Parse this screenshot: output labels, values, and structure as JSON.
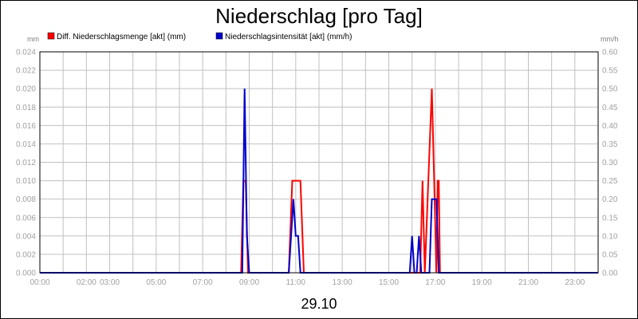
{
  "chart_data": {
    "type": "line",
    "title": "Niederschlag [pro Tag]",
    "date_label": "29.10",
    "y_left_unit": "mm",
    "y_right_unit": "mm/h",
    "ylim_left": [
      0,
      0.024
    ],
    "ylim_right": [
      0,
      0.6
    ],
    "y_left_ticks": [
      "0.000",
      "0.002",
      "0.004",
      "0.006",
      "0.008",
      "0.010",
      "0.012",
      "0.014",
      "0.016",
      "0.018",
      "0.020",
      "0.022",
      "0.024"
    ],
    "y_right_ticks": [
      "0.00",
      "0.05",
      "0.10",
      "0.15",
      "0.20",
      "0.25",
      "0.30",
      "0.35",
      "0.40",
      "0.45",
      "0.50",
      "0.55",
      "0.60"
    ],
    "x_range_hours": [
      0,
      24
    ],
    "x_ticks": [
      {
        "h": 0,
        "label": "00:00"
      },
      {
        "h": 2,
        "label": "02:00"
      },
      {
        "h": 3,
        "label": "03:00"
      },
      {
        "h": 5,
        "label": "05:00"
      },
      {
        "h": 7,
        "label": "07:00"
      },
      {
        "h": 9,
        "label": "09:00"
      },
      {
        "h": 11,
        "label": "11:00"
      },
      {
        "h": 13,
        "label": "13:00"
      },
      {
        "h": 15,
        "label": "15:00"
      },
      {
        "h": 17,
        "label": "17:00"
      },
      {
        "h": 19,
        "label": "19:00"
      },
      {
        "h": 21,
        "label": "21:00"
      },
      {
        "h": 23,
        "label": "23:00"
      }
    ],
    "grid": true,
    "legend_position": "top-left",
    "colors": {
      "series1": "#ff0000",
      "series2": "#0000cc",
      "grid": "#c0c0c0"
    },
    "series": [
      {
        "name": "Diff. Niederschlagsmenge [akt] (mm)",
        "axis": "left",
        "color": "#ff0000",
        "x": [
          0,
          8.65,
          8.75,
          8.85,
          8.95,
          10.7,
          10.85,
          10.95,
          11.1,
          11.2,
          11.35,
          16.35,
          16.45,
          16.55,
          16.7,
          16.85,
          16.95,
          17.05,
          17.1,
          17.15,
          17.2,
          17.25,
          24
        ],
        "y": [
          0,
          0,
          0.01,
          0.01,
          0,
          0,
          0.01,
          0.01,
          0.01,
          0.01,
          0,
          0,
          0.01,
          0,
          0.01,
          0.02,
          0.01,
          0,
          0.01,
          0.01,
          0,
          0,
          0
        ]
      },
      {
        "name": "Niederschlagsintensität [akt] (mm/h)",
        "axis": "right",
        "color": "#0000cc",
        "x": [
          0,
          8.7,
          8.8,
          8.9,
          9.0,
          10.7,
          10.8,
          10.9,
          11.0,
          11.1,
          11.2,
          15.9,
          16.0,
          16.1,
          16.2,
          16.3,
          16.4,
          16.75,
          16.85,
          17.05,
          17.15,
          24
        ],
        "y": [
          0,
          0,
          0.5,
          0.1,
          0,
          0,
          0.1,
          0.2,
          0.1,
          0.1,
          0,
          0,
          0.1,
          0,
          0,
          0.1,
          0,
          0,
          0.2,
          0.2,
          0,
          0
        ]
      }
    ]
  }
}
